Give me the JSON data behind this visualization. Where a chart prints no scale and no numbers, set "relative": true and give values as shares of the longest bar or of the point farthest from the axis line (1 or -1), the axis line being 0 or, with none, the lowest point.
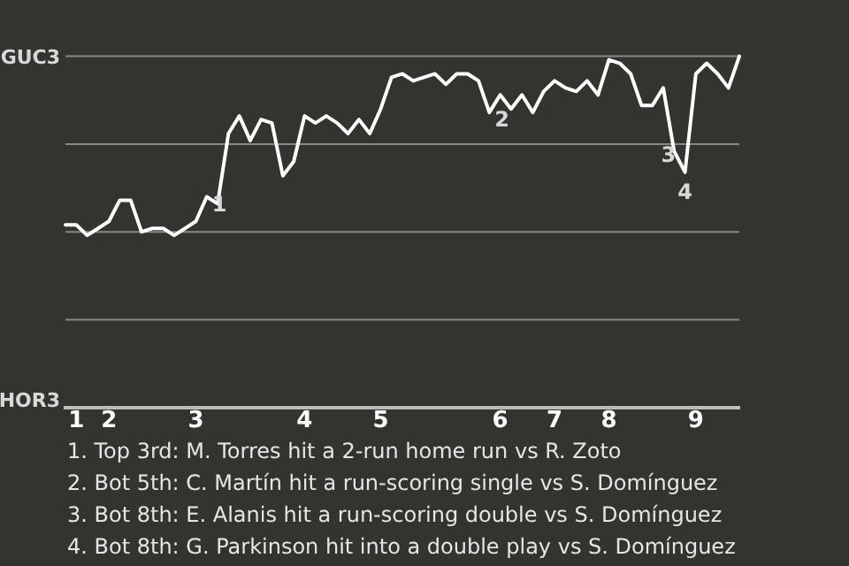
{
  "chart_data": {
    "type": "line",
    "relative": true,
    "categories": [
      null,
      "1",
      null,
      null,
      "2",
      null,
      null,
      null,
      null,
      null,
      null,
      null,
      "3",
      null,
      null,
      null,
      null,
      null,
      null,
      null,
      null,
      null,
      "4",
      null,
      null,
      null,
      null,
      null,
      null,
      "5",
      null,
      null,
      null,
      null,
      null,
      null,
      null,
      null,
      null,
      null,
      "6",
      null,
      null,
      null,
      null,
      "7",
      null,
      null,
      null,
      null,
      "8",
      null,
      null,
      null,
      null,
      null,
      null,
      null,
      "9",
      null,
      null,
      null,
      null
    ],
    "series": [
      {
        "color": "#ffffff",
        "values": [
          0.52,
          0.52,
          0.49,
          0.51,
          0.53,
          0.59,
          0.59,
          0.5,
          0.51,
          0.51,
          0.49,
          0.51,
          0.53,
          0.6,
          0.58,
          0.78,
          0.83,
          0.76,
          0.82,
          0.81,
          0.66,
          0.7,
          0.83,
          0.81,
          0.83,
          0.81,
          0.78,
          0.82,
          0.78,
          0.85,
          0.94,
          0.95,
          0.93,
          0.94,
          0.95,
          0.92,
          0.95,
          0.95,
          0.93,
          0.84,
          0.89,
          0.85,
          0.89,
          0.84,
          0.9,
          0.93,
          0.91,
          0.9,
          0.93,
          0.89,
          0.99,
          0.98,
          0.95,
          0.86,
          0.86,
          0.91,
          0.73,
          0.67,
          0.95,
          0.98,
          0.95,
          0.91,
          1
        ]
      }
    ],
    "grid": "y",
    "marker": "none",
    "line_style": "solid",
    "legend": false,
    "annotations": [
      {
        "text": "1",
        "y": 0.6
      },
      {
        "text": "2",
        "y": 0.84
      },
      {
        "text": "3",
        "y": 0.73
      },
      {
        "text": "4",
        "y": 0.67
      },
      "GUC3",
      "HOR3",
      "1. Top 3rd: M. Torres hit a 2-run home run vs R. Zoto",
      "2. Bot 5th: C. Martín hit a run-scoring single vs S. Domínguez",
      "3. Bot 8th: E. Alanis hit a run-scoring double vs S. Domínguez",
      "4. Bot 8th: G. Parkinson hit into a double play vs S. Domínguez"
    ]
  }
}
